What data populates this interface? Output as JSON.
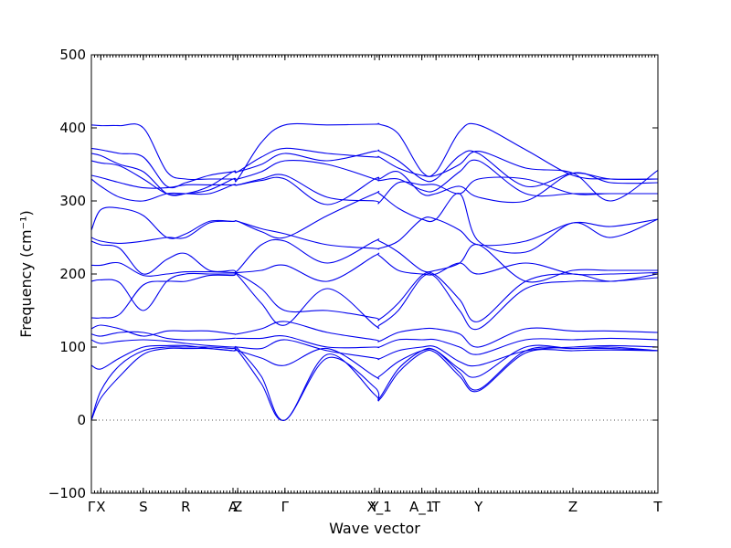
{
  "chart_data": {
    "type": "line",
    "xlabel": "Wave vector",
    "ylabel": "Frequency (cm⁻¹)",
    "ylim": [
      -100,
      500
    ],
    "yticks": [
      -100,
      0,
      100,
      200,
      300,
      400,
      500
    ],
    "zero_line": true,
    "grid": false,
    "legend": "none",
    "line_color": "#0000ee",
    "path_segments": [
      {
        "from": "Γ",
        "to": "X",
        "length": 0.1
      },
      {
        "from": "X",
        "to": "S",
        "length": 0.45
      },
      {
        "from": "S",
        "to": "R",
        "length": 0.45
      },
      {
        "from": "R",
        "to": "A",
        "length": 0.5
      },
      {
        "from": "A",
        "to": "Z",
        "length": 0.05
      },
      {
        "from": "Z",
        "to": "Γ",
        "length": 0.5
      },
      {
        "from": "Γ",
        "to": "Y",
        "length": 0.95
      },
      {
        "from": "Y",
        "to": "X_1",
        "length": 0.05
      },
      {
        "from": "X_1",
        "to": "A_1",
        "length": 0.45
      },
      {
        "from": "A_1",
        "to": "T",
        "length": 0.15
      },
      {
        "from": "T",
        "to": "Y",
        "length": 0.45
      },
      {
        "from": "Y",
        "to": "Z",
        "length": 1.0
      },
      {
        "from": "Z",
        "to": "T",
        "length": 0.9
      }
    ],
    "xtick_labels": [
      {
        "label": "Γ",
        "at": 0
      },
      {
        "label": "X",
        "at": 0.1
      },
      {
        "label": "S",
        "at": 0.55
      },
      {
        "label": "R",
        "at": 1.0
      },
      {
        "label": "A",
        "at": 1.5
      },
      {
        "label": "Z",
        "at": 1.55
      },
      {
        "label": "Γ",
        "at": 2.05
      },
      {
        "label": "Y",
        "at": 3.0
      },
      {
        "label": "X_1",
        "at": 3.05
      },
      {
        "label": "A_1",
        "at": 3.5
      },
      {
        "label": "T",
        "at": 3.65
      },
      {
        "label": "Y",
        "at": 4.1
      },
      {
        "label": "Z",
        "at": 5.1
      },
      {
        "label": "T",
        "at": 6.0
      }
    ],
    "xlim": [
      0,
      6.0
    ],
    "series": [
      {
        "x": [
          0,
          0.1,
          0.3,
          0.55,
          0.8,
          1.0,
          1.25,
          1.5,
          1.55,
          1.8,
          2.05,
          2.5,
          3.0,
          3.05,
          3.25,
          3.5,
          3.65,
          3.9,
          4.1,
          4.6,
          5.1,
          5.5,
          6.0
        ],
        "y": [
          404,
          403,
          403,
          400,
          340,
          330,
          330,
          330,
          330,
          380,
          404,
          404,
          405,
          405,
          392,
          340,
          340,
          395,
          404,
          370,
          335,
          330,
          330
        ]
      },
      {
        "x": [
          0,
          0.1,
          0.3,
          0.55,
          0.8,
          1.0,
          1.25,
          1.5,
          1.55,
          1.8,
          2.05,
          2.5,
          3.0,
          3.05,
          3.25,
          3.5,
          3.65,
          3.9,
          4.1,
          4.6,
          5.1,
          5.5,
          6.0
        ],
        "y": [
          372,
          370,
          365,
          360,
          320,
          325,
          335,
          340,
          340,
          360,
          372,
          365,
          360,
          360,
          345,
          335,
          335,
          350,
          368,
          345,
          338,
          300,
          342
        ]
      },
      {
        "x": [
          0,
          0.1,
          0.3,
          0.55,
          0.8,
          1.0,
          1.25,
          1.5,
          1.55,
          1.8,
          2.05,
          2.5,
          3.0,
          3.05,
          3.25,
          3.5,
          3.65,
          3.9,
          4.1,
          4.6,
          5.1,
          5.5,
          6.0
        ],
        "y": [
          365,
          362,
          350,
          340,
          310,
          310,
          320,
          340,
          340,
          350,
          365,
          355,
          368,
          368,
          355,
          330,
          330,
          362,
          365,
          320,
          338,
          330,
          330
        ]
      },
      {
        "x": [
          0,
          0.1,
          0.3,
          0.55,
          0.8,
          1.0,
          1.25,
          1.5,
          1.55,
          1.8,
          2.05,
          2.5,
          3.0,
          3.05,
          3.25,
          3.5,
          3.65,
          3.9,
          4.1,
          4.6,
          5.1,
          5.5,
          6.0
        ],
        "y": [
          355,
          352,
          348,
          330,
          310,
          310,
          315,
          330,
          330,
          340,
          355,
          350,
          330,
          328,
          330,
          315,
          315,
          340,
          355,
          310,
          310,
          310,
          310
        ]
      },
      {
        "x": [
          0,
          0.1,
          0.3,
          0.55,
          0.8,
          1.0,
          1.25,
          1.5,
          1.55,
          1.8,
          2.05,
          2.5,
          3.0,
          3.05,
          3.25,
          3.5,
          3.65,
          3.9,
          4.1,
          4.6,
          5.1,
          5.5,
          6.0
        ],
        "y": [
          335,
          332,
          325,
          318,
          318,
          322,
          322,
          322,
          322,
          330,
          335,
          305,
          300,
          298,
          325,
          322,
          322,
          310,
          330,
          330,
          310,
          310,
          310
        ]
      },
      {
        "x": [
          0,
          0.1,
          0.3,
          0.55,
          0.8,
          1.0,
          1.25,
          1.5,
          1.55,
          1.8,
          2.05,
          2.5,
          3.0,
          3.05,
          3.25,
          3.5,
          3.65,
          3.9,
          4.1,
          4.6,
          5.1,
          5.5,
          6.0
        ],
        "y": [
          330,
          320,
          305,
          300,
          310,
          310,
          310,
          322,
          322,
          328,
          330,
          295,
          330,
          330,
          340,
          310,
          310,
          320,
          305,
          300,
          338,
          325,
          325
        ]
      },
      {
        "x": [
          0,
          0.1,
          0.3,
          0.55,
          0.8,
          1.0,
          1.25,
          1.5,
          1.55,
          1.8,
          2.05,
          2.5,
          3.0,
          3.05,
          3.25,
          3.5,
          3.65,
          3.9,
          4.1,
          4.6,
          5.1,
          5.5,
          6.0
        ],
        "y": [
          260,
          288,
          290,
          280,
          250,
          255,
          272,
          272,
          272,
          262,
          255,
          240,
          235,
          235,
          245,
          275,
          275,
          260,
          240,
          245,
          270,
          265,
          275
        ]
      },
      {
        "x": [
          0,
          0.1,
          0.3,
          0.55,
          0.8,
          1.0,
          1.25,
          1.5,
          1.55,
          1.8,
          2.05,
          2.5,
          3.0,
          3.05,
          3.25,
          3.5,
          3.65,
          3.9,
          4.1,
          4.6,
          5.1,
          5.5,
          6.0
        ],
        "y": [
          250,
          245,
          242,
          245,
          250,
          250,
          270,
          272,
          272,
          258,
          250,
          280,
          310,
          310,
          290,
          275,
          275,
          310,
          245,
          230,
          270,
          250,
          275
        ]
      },
      {
        "x": [
          0,
          0.1,
          0.3,
          0.55,
          0.8,
          1.0,
          1.25,
          1.5,
          1.55,
          1.8,
          2.05,
          2.5,
          3.0,
          3.05,
          3.25,
          3.5,
          3.65,
          3.9,
          4.1,
          4.6,
          5.1,
          5.5,
          6.0
        ],
        "y": [
          245,
          240,
          235,
          200,
          220,
          228,
          205,
          205,
          205,
          240,
          245,
          215,
          245,
          245,
          230,
          205,
          205,
          215,
          240,
          190,
          205,
          205,
          205
        ]
      },
      {
        "x": [
          0,
          0.1,
          0.3,
          0.55,
          0.8,
          1.0,
          1.25,
          1.5,
          1.55,
          1.8,
          2.05,
          2.5,
          3.0,
          3.05,
          3.25,
          3.5,
          3.65,
          3.9,
          4.1,
          4.6,
          5.1,
          5.5,
          6.0
        ],
        "y": [
          212,
          212,
          215,
          198,
          200,
          203,
          203,
          202,
          202,
          205,
          212,
          190,
          225,
          225,
          205,
          200,
          200,
          215,
          200,
          215,
          200,
          200,
          202
        ]
      },
      {
        "x": [
          0,
          0.1,
          0.3,
          0.55,
          0.8,
          1.0,
          1.25,
          1.5,
          1.55,
          1.8,
          2.05,
          2.5,
          3.0,
          3.05,
          3.25,
          3.5,
          3.65,
          3.9,
          4.1,
          4.6,
          5.1,
          5.5,
          6.0
        ],
        "y": [
          190,
          192,
          188,
          150,
          190,
          200,
          200,
          200,
          200,
          180,
          150,
          150,
          140,
          138,
          160,
          198,
          198,
          165,
          135,
          190,
          200,
          190,
          200
        ]
      },
      {
        "x": [
          0,
          0.1,
          0.3,
          0.55,
          0.8,
          1.0,
          1.25,
          1.5,
          1.55,
          1.8,
          2.05,
          2.5,
          3.0,
          3.05,
          3.25,
          3.5,
          3.65,
          3.9,
          4.1,
          4.6,
          5.1,
          5.5,
          6.0
        ],
        "y": [
          140,
          140,
          145,
          185,
          190,
          190,
          198,
          198,
          198,
          160,
          130,
          180,
          130,
          130,
          150,
          195,
          195,
          150,
          125,
          180,
          190,
          190,
          195
        ]
      },
      {
        "x": [
          0,
          0.1,
          0.3,
          0.55,
          0.8,
          1.0,
          1.25,
          1.5,
          1.55,
          1.8,
          2.05,
          2.5,
          3.0,
          3.05,
          3.25,
          3.5,
          3.65,
          3.9,
          4.1,
          4.6,
          5.1,
          5.5,
          6.0
        ],
        "y": [
          125,
          130,
          125,
          115,
          122,
          122,
          122,
          118,
          118,
          125,
          135,
          120,
          110,
          108,
          120,
          125,
          125,
          118,
          100,
          125,
          122,
          122,
          120
        ]
      },
      {
        "x": [
          0,
          0.1,
          0.3,
          0.55,
          0.8,
          1.0,
          1.25,
          1.5,
          1.55,
          1.8,
          2.05,
          2.5,
          3.0,
          3.05,
          3.25,
          3.5,
          3.65,
          3.9,
          4.1,
          4.6,
          5.1,
          5.5,
          6.0
        ],
        "y": [
          118,
          115,
          120,
          120,
          112,
          110,
          110,
          112,
          112,
          112,
          115,
          100,
          100,
          100,
          110,
          110,
          110,
          100,
          90,
          110,
          110,
          112,
          110
        ]
      },
      {
        "x": [
          0,
          0.1,
          0.3,
          0.55,
          0.8,
          1.0,
          1.25,
          1.5,
          1.55,
          1.8,
          2.05,
          2.5,
          3.0,
          3.05,
          3.25,
          3.5,
          3.65,
          3.9,
          4.1,
          4.6,
          5.1,
          5.5,
          6.0
        ],
        "y": [
          110,
          105,
          108,
          110,
          108,
          105,
          102,
          100,
          100,
          98,
          110,
          95,
          85,
          84,
          95,
          100,
          100,
          80,
          75,
          95,
          100,
          102,
          100
        ]
      },
      {
        "x": [
          0,
          0.1,
          0.3,
          0.55,
          0.8,
          1.0,
          1.25,
          1.5,
          1.55,
          1.8,
          2.05,
          2.5,
          3.0,
          3.05,
          3.25,
          3.5,
          3.65,
          3.9,
          4.1,
          4.6,
          5.1,
          5.5,
          6.0
        ],
        "y": [
          75,
          70,
          85,
          100,
          102,
          102,
          98,
          95,
          95,
          85,
          75,
          98,
          60,
          60,
          80,
          95,
          95,
          70,
          60,
          100,
          98,
          100,
          95
        ]
      },
      {
        "x": [
          0,
          0.1,
          0.3,
          0.55,
          0.8,
          1.0,
          1.25,
          1.5,
          1.55,
          1.8,
          2.05,
          2.5,
          3.0,
          3.05,
          3.25,
          3.5,
          3.65,
          3.9,
          4.1,
          4.6,
          5.1,
          5.5,
          6.0
        ],
        "y": [
          0,
          40,
          75,
          95,
          100,
          100,
          100,
          98,
          98,
          60,
          0,
          90,
          35,
          30,
          70,
          95,
          95,
          65,
          42,
          95,
          98,
          98,
          95
        ]
      },
      {
        "x": [
          0,
          0.1,
          0.3,
          0.55,
          0.8,
          1.0,
          1.25,
          1.5,
          1.55,
          1.8,
          2.05,
          2.5,
          3.0,
          3.05,
          3.25,
          3.5,
          3.65,
          3.9,
          4.1,
          4.6,
          5.1,
          5.5,
          6.0
        ],
        "y": [
          0,
          30,
          60,
          90,
          98,
          98,
          98,
          95,
          95,
          50,
          0,
          85,
          45,
          28,
          65,
          92,
          92,
          60,
          40,
          92,
          95,
          96,
          95
        ]
      }
    ]
  }
}
